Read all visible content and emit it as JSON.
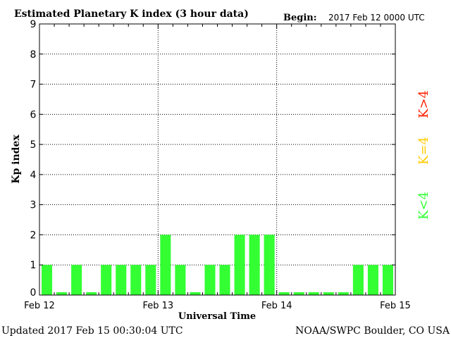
{
  "header": {
    "title": "Estimated Planetary K index (3 hour data)",
    "begin_label": "Begin:",
    "begin_value": "2017 Feb 12 0000 UTC"
  },
  "footer": {
    "updated": "Updated 2017 Feb 15 00:30:04 UTC",
    "source": "NOAA/SWPC Boulder, CO USA"
  },
  "legend": {
    "above": "K>4",
    "equal": "K=4",
    "below": "K<4"
  },
  "colors": {
    "below": "#33ff33",
    "equal": "#ffcc00",
    "above": "#ff2200",
    "axis": "#000000",
    "grid": "#000000"
  },
  "chart_data": {
    "type": "bar",
    "ylabel": "Kp index",
    "xlabel": "Universal Time",
    "ylim": [
      0,
      9
    ],
    "yticks": [
      "0",
      "1",
      "2",
      "3",
      "4",
      "5",
      "6",
      "7",
      "8",
      "9"
    ],
    "xticks": [
      "Feb 12",
      "Feb 13",
      "Feb 14",
      "Feb 15"
    ],
    "grid": "dotted",
    "values": [
      1,
      0,
      1,
      0,
      1,
      1,
      1,
      1,
      2,
      1,
      0,
      1,
      1,
      2,
      2,
      2,
      0,
      0,
      0,
      0,
      0,
      1,
      1,
      1
    ]
  }
}
